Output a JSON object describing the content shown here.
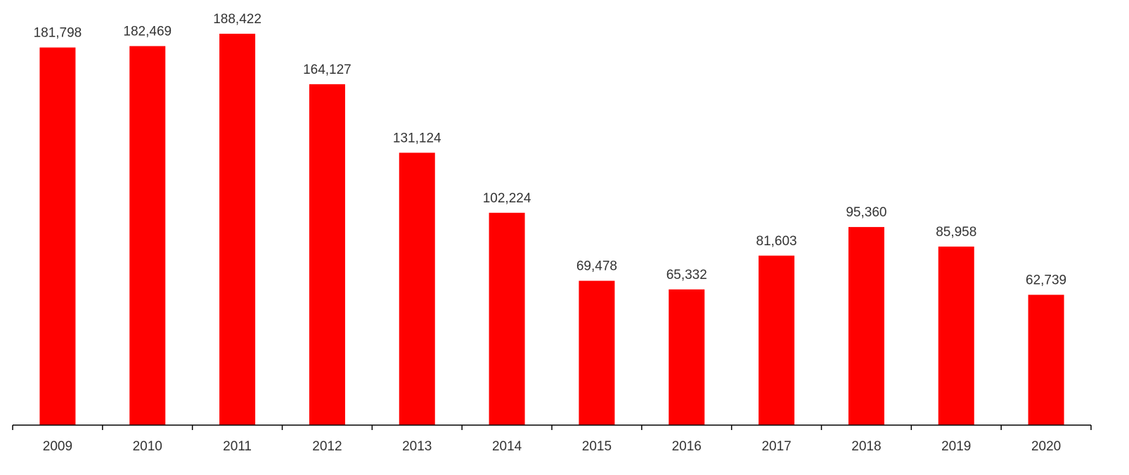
{
  "chart_data": {
    "type": "bar",
    "categories": [
      "2009",
      "2010",
      "2011",
      "2012",
      "2013",
      "2014",
      "2015",
      "2016",
      "2017",
      "2018",
      "2019",
      "2020"
    ],
    "values": [
      181798,
      182469,
      188422,
      164127,
      131124,
      102224,
      69478,
      65332,
      81603,
      95360,
      85958,
      62739
    ],
    "data_labels": [
      "181,798",
      "182,469",
      "188,422",
      "164,127",
      "131,124",
      "102,224",
      "69,478",
      "65,332",
      "81,603",
      "95,360",
      "85,958",
      "62,739"
    ],
    "title": "",
    "xlabel": "",
    "ylabel": "",
    "ylim": [
      0,
      200000
    ],
    "grid": false,
    "legend": "none",
    "colors": {
      "bar": "#ff0000",
      "axis": "#000000",
      "text": "#333333"
    }
  }
}
